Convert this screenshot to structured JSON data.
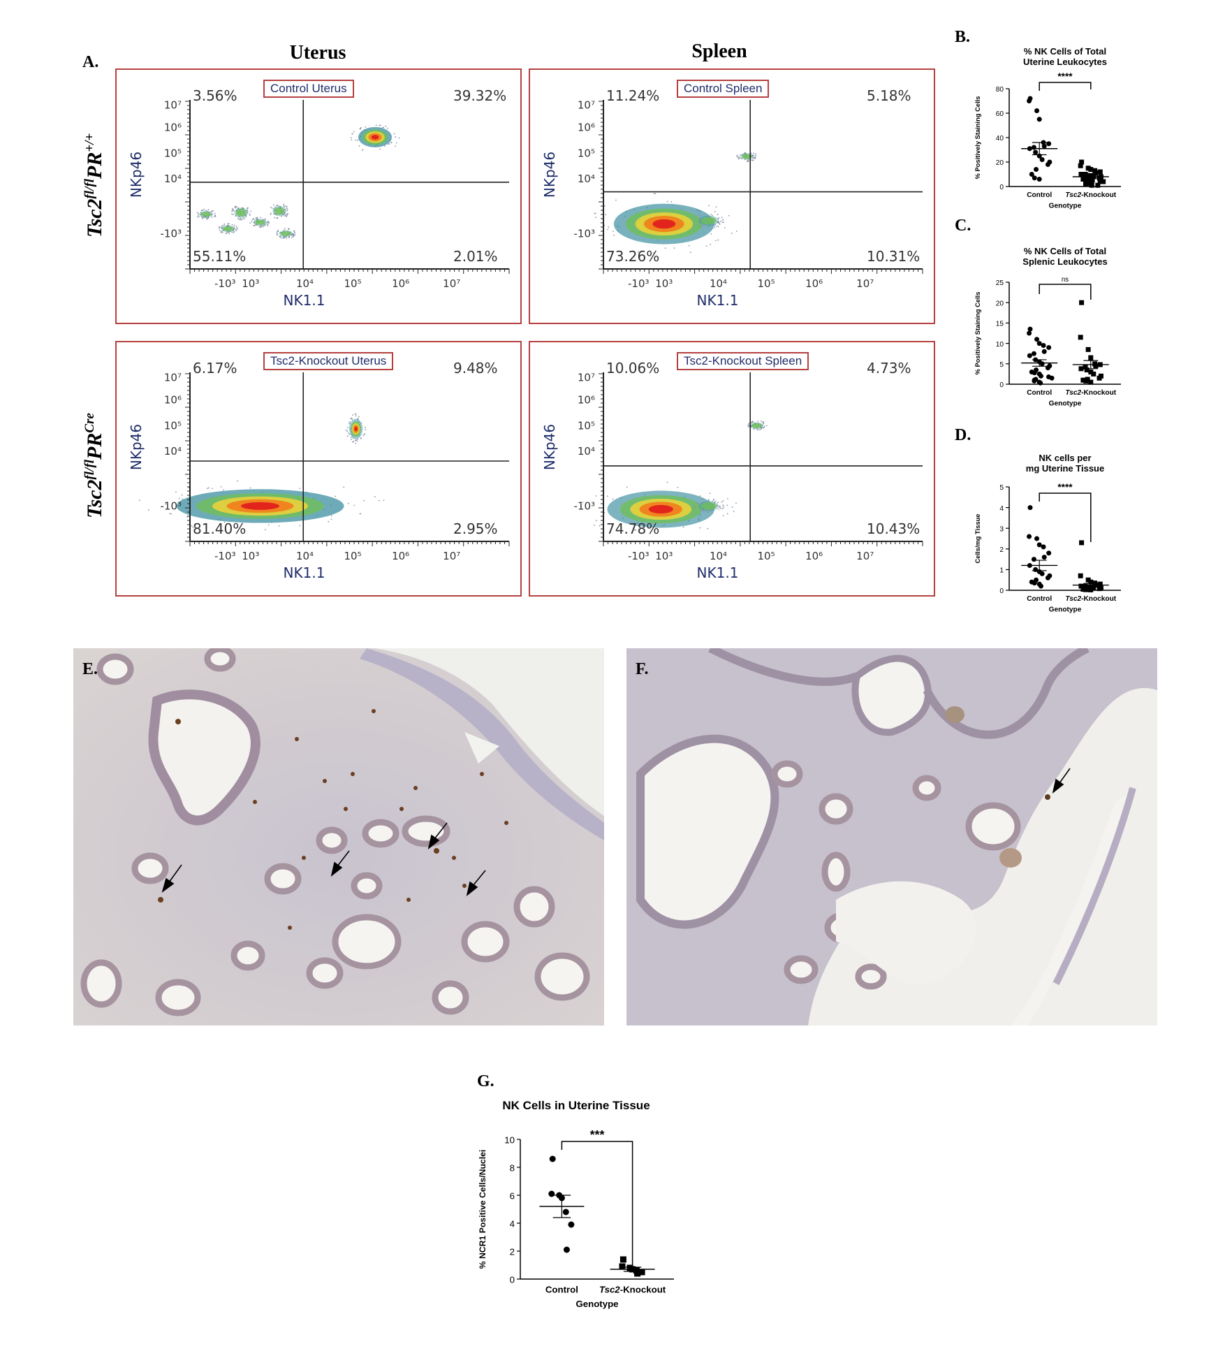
{
  "panels": {
    "A": "A.",
    "B": "B.",
    "C": "C.",
    "D": "D.",
    "E": "E.",
    "F": "F.",
    "G": "G."
  },
  "flow": {
    "col_uterus": "Uterus",
    "col_spleen": "Spleen",
    "row_control": {
      "base": "Tsc2",
      "sup1": "fl/fl",
      "mid": "PR",
      "sup2": "+/+"
    },
    "row_ko": {
      "base": "Tsc2",
      "sup1": "fl/fl",
      "mid": "PR",
      "sup2": "Cre"
    },
    "xlabel": "NK1.1",
    "ylabel": "NKp46",
    "plots": [
      {
        "title": "Control Uterus",
        "ul": "3.56%",
        "ur": "39.32%",
        "ll": "55.11%",
        "lr": "2.01%"
      },
      {
        "title": "Control Spleen",
        "ul": "11.24%",
        "ur": "5.18%",
        "ll": "73.26%",
        "lr": "10.31%"
      },
      {
        "title": "Tsc2-Knockout Uterus",
        "ul": "6.17%",
        "ur": "9.48%",
        "ll": "81.40%",
        "lr": "2.95%"
      },
      {
        "title": "Tsc2-Knockout Spleen",
        "ul": "10.06%",
        "ur": "4.73%",
        "ll": "74.78%",
        "lr": "10.43%"
      }
    ],
    "x_ticks": [
      "-10³",
      "10³",
      "10⁴",
      "10⁵",
      "10⁶",
      "10⁷"
    ],
    "y_ticks": [
      "10⁷",
      "10⁶",
      "10⁵",
      "10⁴",
      "-10³"
    ]
  },
  "chart_data": [
    {
      "panel": "B",
      "type": "scatter",
      "title": "% NK Cells of Total Uterine Leukocytes",
      "title_lines": [
        "% NK Cells of Total",
        "Uterine Leukocytes"
      ],
      "ylabel": "% Positively Staining Cells",
      "xlabel": "Genotype",
      "ylim": [
        0,
        80
      ],
      "yticks": [
        0,
        20,
        40,
        60,
        80
      ],
      "categories": [
        "Control",
        "Tsc2-Knockout"
      ],
      "significance": "****",
      "series": [
        {
          "name": "Control",
          "marker": "circle",
          "mean": 31,
          "sem": 5,
          "values": [
            72,
            70,
            62,
            55,
            36,
            35,
            33,
            32,
            31,
            28,
            25,
            22,
            20,
            18,
            14,
            10,
            7,
            6
          ]
        },
        {
          "name": "Tsc2-Knockout",
          "marker": "square",
          "mean": 8,
          "sem": 1.2,
          "values": [
            20,
            17,
            15,
            14,
            13,
            12,
            11,
            10,
            10,
            9,
            9,
            8,
            8,
            7,
            7,
            6,
            6,
            5,
            5,
            4,
            4,
            3,
            3,
            2,
            2,
            1,
            1
          ]
        }
      ]
    },
    {
      "panel": "C",
      "type": "scatter",
      "title": "% NK Cells of Total Splenic Leukocytes",
      "title_lines": [
        "% NK Cells of Total",
        "Splenic Leukocytes"
      ],
      "ylabel": "% Positively Staining Cells",
      "xlabel": "Genotype",
      "ylim": [
        0,
        25
      ],
      "yticks": [
        0,
        5,
        10,
        15,
        20,
        25
      ],
      "categories": [
        "Control",
        "Tsc2-Knockout"
      ],
      "significance": "ns",
      "series": [
        {
          "name": "Control",
          "marker": "circle",
          "mean": 5.2,
          "sem": 0.8,
          "values": [
            13.5,
            12.5,
            11,
            10,
            9.5,
            9,
            8,
            7.5,
            7,
            6,
            5.5,
            5,
            4.5,
            4,
            3.5,
            3,
            2.8,
            2.5,
            2,
            1.8,
            1.5,
            1.2,
            1,
            0.8,
            0.5,
            0.3
          ]
        },
        {
          "name": "Tsc2-Knockout",
          "marker": "square",
          "mean": 4.8,
          "sem": 1,
          "values": [
            20,
            11.5,
            8.5,
            6.5,
            5,
            4.8,
            4.5,
            4.2,
            3.8,
            3.5,
            3,
            2.5,
            2,
            1.5,
            1.2,
            1,
            0.8,
            0.5
          ]
        }
      ]
    },
    {
      "panel": "D",
      "type": "scatter",
      "title": "NK cells per mg Uterine Tissue",
      "title_lines": [
        "NK cells per",
        "mg Uterine Tissue"
      ],
      "ylabel": "Cells/mg Tissue",
      "xlabel": "Genotype",
      "ylim": [
        0,
        5
      ],
      "yticks": [
        0,
        1,
        2,
        3,
        4,
        5
      ],
      "categories": [
        "Control",
        "Tsc2-Knockout"
      ],
      "significance": "****",
      "series": [
        {
          "name": "Control",
          "marker": "circle",
          "mean": 1.2,
          "sem": 0.25,
          "values": [
            4,
            2.6,
            2.5,
            2.2,
            2.1,
            1.8,
            1.6,
            1.5,
            1.2,
            1.0,
            0.9,
            0.8,
            0.7,
            0.6,
            0.5,
            0.4,
            0.35,
            0.3,
            0.2
          ]
        },
        {
          "name": "Tsc2-Knockout",
          "marker": "square",
          "mean": 0.25,
          "sem": 0.08,
          "values": [
            2.3,
            0.7,
            0.5,
            0.4,
            0.35,
            0.3,
            0.25,
            0.2,
            0.2,
            0.15,
            0.15,
            0.1,
            0.1,
            0.08,
            0.05,
            0.05,
            0.03,
            0.02
          ]
        }
      ]
    },
    {
      "panel": "G",
      "type": "scatter",
      "title": "NK Cells in Uterine Tissue",
      "title_lines": [
        "NK Cells in Uterine Tissue"
      ],
      "ylabel": "% NCR1 Positive Cells/Nuclei",
      "xlabel": "Genotype",
      "ylim": [
        0,
        10
      ],
      "yticks": [
        0,
        2,
        4,
        6,
        8,
        10
      ],
      "categories": [
        "Control",
        "Tsc2-Knockout"
      ],
      "significance": "***",
      "series": [
        {
          "name": "Control",
          "marker": "circle",
          "mean": 5.2,
          "sem": 0.8,
          "values": [
            8.6,
            6.1,
            6.0,
            5.8,
            4.8,
            3.9,
            2.1
          ]
        },
        {
          "name": "Tsc2-Knockout",
          "marker": "square",
          "mean": 0.7,
          "sem": 0.15,
          "values": [
            1.4,
            0.9,
            0.8,
            0.7,
            0.6,
            0.5,
            0.4
          ]
        }
      ]
    }
  ]
}
